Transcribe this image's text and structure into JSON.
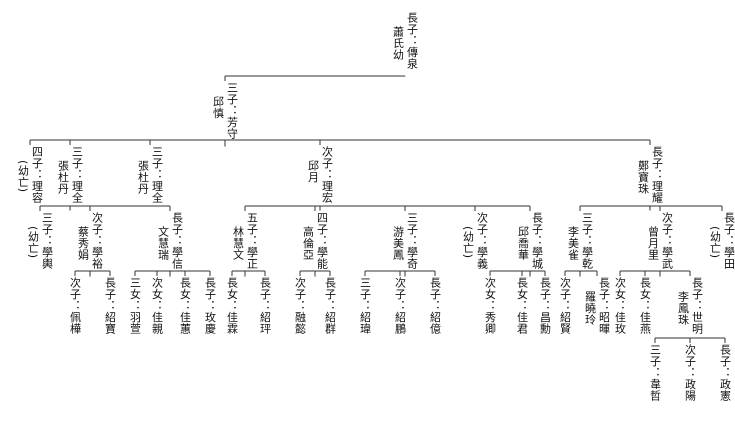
{
  "root": {
    "lines": [
      "長子：傳泉",
      "蕭氏幼"
    ],
    "children": [
      {
        "lines": [
          "三子：芳守",
          "邱慎"
        ],
        "children": [
          {
            "lines": [
              "四子：理容",
              "(幼亡)"
            ],
            "children": []
          },
          {
            "lines": [
              "三子：理全",
              "張杜丹"
            ],
            "children": [
              {
                "lines": [
                  "三子：學輿",
                  "(幼亡)"
                ],
                "children": []
              },
              {
                "lines": [
                  "次子：學裕",
                  "蔡秀娟"
                ],
                "children": [
                  {
                    "lines": [
                      "次子：佩樺"
                    ],
                    "children": []
                  },
                  {
                    "lines": [
                      "長子：紹寶"
                    ],
                    "children": []
                  }
                ]
              },
              {
                "lines": [
                  "長子：學信",
                  "文慧瑞"
                ],
                "children": [
                  {
                    "lines": [
                      "三女：羽萱"
                    ],
                    "children": []
                  },
                  {
                    "lines": [
                      "次女：佳親"
                    ],
                    "children": []
                  },
                  {
                    "lines": [
                      "長女：佳蕙"
                    ],
                    "children": []
                  },
                  {
                    "lines": [
                      "長子：玫慶"
                    ],
                    "children": []
                  }
                ]
              }
            ]
          },
          {
            "lines": [
              "三子：理全",
              "張杜丹"
            ],
            "children": []
          },
          {
            "lines": [
              "次子：理宏",
              "邱月"
            ],
            "children": [
              {
                "lines": [
                  "五子：學正",
                  "林慧文"
                ],
                "children": [
                  {
                    "lines": [
                      "長女：佳霖"
                    ],
                    "children": []
                  },
                  {
                    "lines": [
                      "長子：紹玶"
                    ],
                    "children": []
                  }
                ]
              },
              {
                "lines": [
                  "四子：學能",
                  "高倫亞"
                ],
                "children": [
                  {
                    "lines": [
                      "次子：融懿"
                    ],
                    "children": []
                  },
                  {
                    "lines": [
                      "長子：紹群"
                    ],
                    "children": []
                  }
                ]
              },
              {
                "lines": [
                  "三子：學奇",
                  "游美鳳"
                ],
                "children": [
                  {
                    "lines": [
                      "三子：紹瑋"
                    ],
                    "children": []
                  },
                  {
                    "lines": [
                      "次子：紹鵬"
                    ],
                    "children": []
                  },
                  {
                    "lines": [
                      "長子：紹億"
                    ],
                    "children": []
                  }
                ]
              },
              {
                "lines": [
                  "次子：學義",
                  "(幼亡)"
                ],
                "children": []
              },
              {
                "lines": [
                  "長子：學城",
                  "邱喬華"
                ],
                "children": [
                  {
                    "lines": [
                      "次女：秀卿"
                    ],
                    "children": []
                  },
                  {
                    "lines": [
                      "長女：佳君"
                    ],
                    "children": []
                  },
                  {
                    "lines": [
                      "長子：昌勳"
                    ],
                    "children": []
                  }
                ]
              }
            ]
          },
          {
            "lines": [
              "長子：理耀",
              "鄭寶珠"
            ],
            "children": [
              {
                "lines": [
                  "三子：學乾",
                  "李美雀"
                ],
                "children": [
                  {
                    "lines": [
                      "次子：紹賢"
                    ],
                    "children": []
                  },
                  {
                    "lines": [
                      "長子：昭暉",
                      "羅曉玲"
                    ],
                    "children": []
                  }
                ]
              },
              {
                "lines": [
                  "次子：學武",
                  "曾月里"
                ],
                "children": [
                  {
                    "lines": [
                      "次女：佳玫"
                    ],
                    "children": []
                  },
                  {
                    "lines": [
                      "長女：佳燕"
                    ],
                    "children": []
                  },
                  {
                    "lines": [
                      "長子：世明",
                      "李鳳珠"
                    ],
                    "children": [
                      {
                        "lines": [
                          "三子：韋哲"
                        ],
                        "children": []
                      },
                      {
                        "lines": [
                          "次子：政陽"
                        ],
                        "children": []
                      },
                      {
                        "lines": [
                          "長子：政憲"
                        ],
                        "children": []
                      }
                    ]
                  }
                ]
              },
              {
                "lines": [
                  "長子：學田",
                  "(幼亡)"
                ],
                "children": []
              }
            ]
          }
        ]
      }
    ]
  }
}
